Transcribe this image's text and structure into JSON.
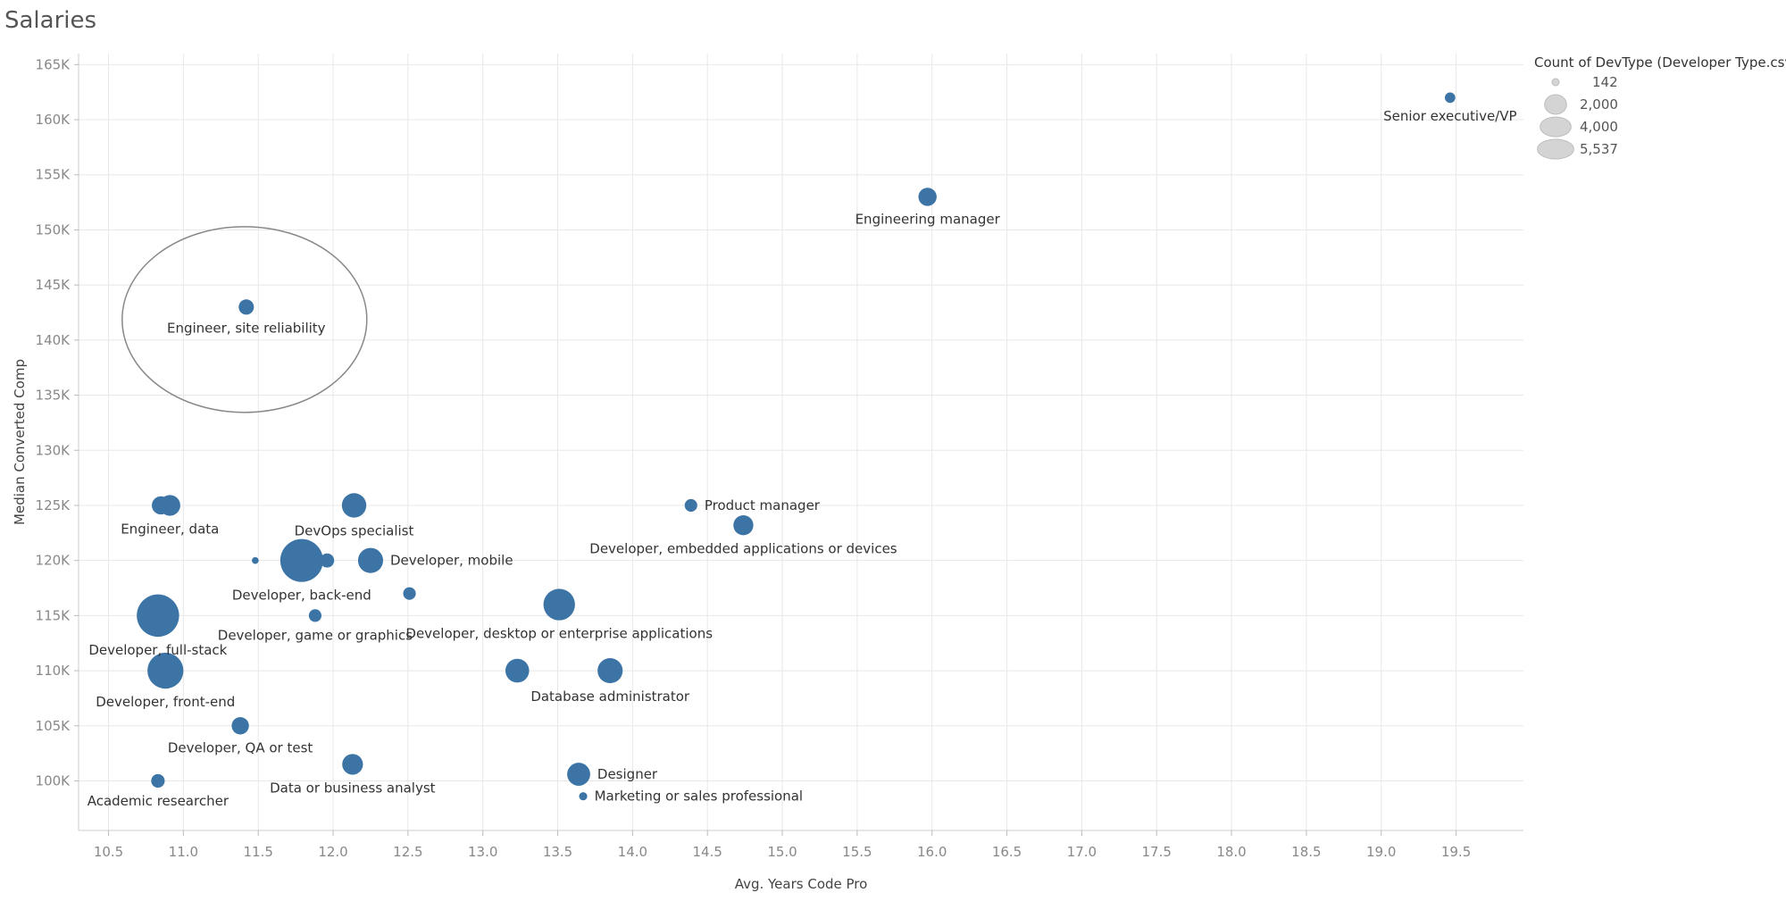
{
  "title": "Salaries",
  "colors": {
    "point": "#3c74a6",
    "grid": "#e8e8e8",
    "annotation": "#888888",
    "legend_fill": "#d4d4d4"
  },
  "chart_data": {
    "type": "scatter",
    "title": "Salaries",
    "xlabel": "Avg. Years Code Pro",
    "ylabel": "Median Converted Comp",
    "xlim": [
      10.3,
      19.95
    ],
    "ylim": [
      95500,
      166000
    ],
    "x_ticks": [
      10.5,
      11.0,
      11.5,
      12.0,
      12.5,
      13.0,
      13.5,
      14.0,
      14.5,
      15.0,
      15.5,
      16.0,
      16.5,
      17.0,
      17.5,
      18.0,
      18.5,
      19.0,
      19.5
    ],
    "x_tick_labels": [
      "10.5",
      "11.0",
      "11.5",
      "12.0",
      "12.5",
      "13.0",
      "13.5",
      "14.0",
      "14.5",
      "15.0",
      "15.5",
      "16.0",
      "16.5",
      "17.0",
      "17.5",
      "18.0",
      "18.5",
      "19.0",
      "19.5"
    ],
    "y_ticks": [
      100000,
      105000,
      110000,
      115000,
      120000,
      125000,
      130000,
      135000,
      140000,
      145000,
      150000,
      155000,
      160000,
      165000
    ],
    "y_tick_labels": [
      "100K",
      "105K",
      "110K",
      "115K",
      "120K",
      "125K",
      "130K",
      "135K",
      "140K",
      "145K",
      "150K",
      "155K",
      "160K",
      "165K"
    ],
    "grid": true,
    "size_measure": "Count of DevType (Developer Type.csv)",
    "size_legend": [
      {
        "label": "142",
        "value": 142
      },
      {
        "label": "2,000",
        "value": 2000
      },
      {
        "label": "4,000",
        "value": 4000
      },
      {
        "label": "5,537",
        "value": 5537
      }
    ],
    "legend_position": "top-right",
    "points": [
      {
        "label": "Senior executive/VP",
        "x": 19.46,
        "y": 162000,
        "count": 330,
        "label_pos": "below"
      },
      {
        "label": "Engineering manager",
        "x": 15.97,
        "y": 153000,
        "count": 1000,
        "label_pos": "below"
      },
      {
        "label": "Engineer, site reliability",
        "x": 11.42,
        "y": 143000,
        "count": 700,
        "label_pos": "below"
      },
      {
        "label": "Engineer, data",
        "x": 10.91,
        "y": 125000,
        "count": 1300,
        "label_pos": "below"
      },
      {
        "label": "",
        "x": 10.85,
        "y": 125000,
        "count": 1000,
        "label_pos": "none"
      },
      {
        "label": "DevOps specialist",
        "x": 12.14,
        "y": 125000,
        "count": 1800,
        "label_pos": "below"
      },
      {
        "label": "Product manager",
        "x": 14.39,
        "y": 125000,
        "count": 480,
        "label_pos": "right"
      },
      {
        "label": "Developer, embedded applications or devices",
        "x": 14.74,
        "y": 123200,
        "count": 1200,
        "label_pos": "below"
      },
      {
        "label": "",
        "x": 11.48,
        "y": 120000,
        "count": 142,
        "label_pos": "none"
      },
      {
        "label": "Developer, back-end",
        "x": 11.79,
        "y": 120000,
        "count": 5537,
        "label_pos": "below"
      },
      {
        "label": "",
        "x": 11.96,
        "y": 120000,
        "count": 600,
        "label_pos": "none"
      },
      {
        "label": "Developer, mobile",
        "x": 12.25,
        "y": 120000,
        "count": 1900,
        "label_pos": "right"
      },
      {
        "label": "",
        "x": 12.51,
        "y": 117000,
        "count": 480,
        "label_pos": "none"
      },
      {
        "label": "Developer, desktop or enterprise applications",
        "x": 13.51,
        "y": 116000,
        "count": 3000,
        "label_pos": "below"
      },
      {
        "label": "Developer, full-stack",
        "x": 10.83,
        "y": 115000,
        "count": 5400,
        "label_pos": "below"
      },
      {
        "label": "Developer, game or graphics",
        "x": 11.88,
        "y": 115000,
        "count": 480,
        "label_pos": "below"
      },
      {
        "label": "Developer, front-end",
        "x": 10.88,
        "y": 110000,
        "count": 3900,
        "label_pos": "below"
      },
      {
        "label": "",
        "x": 13.23,
        "y": 110000,
        "count": 1700,
        "label_pos": "none"
      },
      {
        "label": "Database administrator",
        "x": 13.85,
        "y": 110000,
        "count": 1900,
        "label_pos": "below"
      },
      {
        "label": "Developer, QA or test",
        "x": 11.38,
        "y": 105000,
        "count": 900,
        "label_pos": "below"
      },
      {
        "label": "Data or business analyst",
        "x": 12.13,
        "y": 101500,
        "count": 1300,
        "label_pos": "below"
      },
      {
        "label": "Designer",
        "x": 13.64,
        "y": 100600,
        "count": 1600,
        "label_pos": "right"
      },
      {
        "label": "Academic researcher",
        "x": 10.83,
        "y": 100000,
        "count": 550,
        "label_pos": "below"
      },
      {
        "label": "Marketing or sales professional",
        "x": 13.67,
        "y": 98600,
        "count": 200,
        "label_pos": "right"
      }
    ],
    "annotation": {
      "type": "ellipse",
      "target": "Engineer, site reliability"
    }
  }
}
